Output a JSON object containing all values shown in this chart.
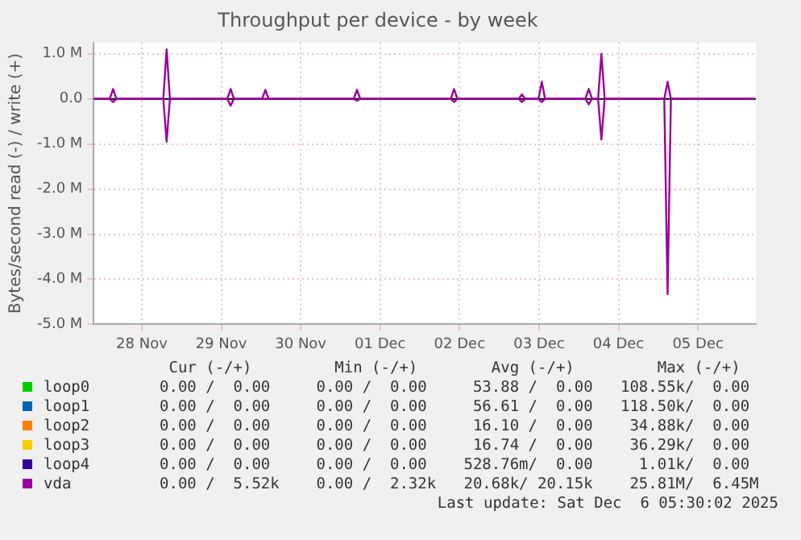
{
  "chart_data": {
    "type": "line",
    "title": "Throughput per device - by week",
    "ylabel": "Bytes/second read (-) / write (+)",
    "legend": "bottom",
    "grid": true,
    "marker": "none",
    "line_style": "solid",
    "xlim": [
      "2025-11-27T21:30",
      "2025-12-06T05:30"
    ],
    "xticks": [
      {
        "value": "2025-11-28T12:00",
        "label": "28 Nov"
      },
      {
        "value": "2025-11-29T12:00",
        "label": "29 Nov"
      },
      {
        "value": "2025-11-30T12:00",
        "label": "30 Nov"
      },
      {
        "value": "2025-12-01T12:00",
        "label": "01 Dec"
      },
      {
        "value": "2025-12-02T12:00",
        "label": "02 Dec"
      },
      {
        "value": "2025-12-03T12:00",
        "label": "03 Dec"
      },
      {
        "value": "2025-12-04T12:00",
        "label": "04 Dec"
      },
      {
        "value": "2025-12-05T12:00",
        "label": "05 Dec"
      }
    ],
    "ylim": [
      -5000000,
      1250000
    ],
    "yticks": [
      {
        "value": -5000000,
        "label": "-5.0 M"
      },
      {
        "value": -4000000,
        "label": "-4.0 M"
      },
      {
        "value": -3000000,
        "label": "-3.0 M"
      },
      {
        "value": -2000000,
        "label": "-2.0 M"
      },
      {
        "value": -1000000,
        "label": "-1.0 M"
      },
      {
        "value": 0,
        "label": "0.0"
      },
      {
        "value": 1000000,
        "label": "1.0 M"
      }
    ],
    "ref_lines": [
      {
        "axis": "y",
        "value": 0,
        "color": "#000000"
      }
    ],
    "x": [
      "2025-11-27T21:30",
      "2025-11-28T02:20",
      "2025-11-28T03:20",
      "2025-11-28T04:20",
      "2025-11-28T18:30",
      "2025-11-28T19:30",
      "2025-11-28T20:30",
      "2025-11-29T13:50",
      "2025-11-29T14:50",
      "2025-11-29T15:50",
      "2025-11-30T00:20",
      "2025-11-30T01:20",
      "2025-11-30T02:20",
      "2025-12-01T04:00",
      "2025-12-01T05:00",
      "2025-12-01T06:00",
      "2025-12-02T09:20",
      "2025-12-02T10:20",
      "2025-12-02T11:20",
      "2025-12-03T05:50",
      "2025-12-03T06:50",
      "2025-12-03T07:50",
      "2025-12-03T11:50",
      "2025-12-03T12:50",
      "2025-12-03T13:50",
      "2025-12-04T02:00",
      "2025-12-04T03:00",
      "2025-12-04T04:00",
      "2025-12-04T05:50",
      "2025-12-04T06:50",
      "2025-12-04T07:50",
      "2025-12-05T01:50",
      "2025-12-05T02:50",
      "2025-12-05T03:50",
      "2025-12-06T05:00"
    ],
    "series": [
      {
        "name": "loop0",
        "color": "#00cc00",
        "values": [
          null,
          null,
          null,
          null,
          null,
          null,
          null,
          null,
          null,
          null,
          null,
          null,
          null,
          null,
          null,
          null,
          null,
          null,
          null,
          null,
          null,
          null,
          null,
          null,
          null,
          null,
          null,
          null,
          null,
          null,
          null,
          null,
          null,
          null,
          null
        ]
      },
      {
        "name": "loop1",
        "color": "#0066b3",
        "values": [
          null,
          null,
          null,
          null,
          null,
          null,
          null,
          null,
          null,
          null,
          null,
          null,
          null,
          null,
          null,
          null,
          null,
          null,
          null,
          null,
          null,
          null,
          null,
          null,
          null,
          null,
          null,
          null,
          null,
          null,
          null,
          null,
          null,
          null,
          null
        ]
      },
      {
        "name": "loop2",
        "color": "#ff8000",
        "values": [
          null,
          null,
          null,
          null,
          null,
          null,
          null,
          null,
          null,
          null,
          null,
          null,
          null,
          null,
          null,
          null,
          null,
          null,
          null,
          null,
          null,
          null,
          null,
          null,
          null,
          null,
          null,
          null,
          null,
          null,
          null,
          null,
          null,
          null,
          null
        ]
      },
      {
        "name": "loop3",
        "color": "#ffcc00",
        "values": [
          null,
          null,
          null,
          null,
          null,
          null,
          null,
          null,
          null,
          null,
          null,
          null,
          null,
          null,
          null,
          null,
          null,
          null,
          null,
          null,
          null,
          null,
          null,
          null,
          null,
          null,
          null,
          null,
          null,
          null,
          null,
          null,
          null,
          null,
          null
        ]
      },
      {
        "name": "loop4",
        "color": "#330099",
        "values": [
          null,
          null,
          null,
          null,
          null,
          null,
          null,
          null,
          null,
          null,
          null,
          null,
          null,
          null,
          null,
          null,
          null,
          null,
          null,
          null,
          null,
          null,
          null,
          null,
          null,
          null,
          null,
          null,
          null,
          null,
          null,
          null,
          null,
          null,
          null
        ]
      },
      {
        "name": "vda",
        "color": "#990099",
        "values": [
          0,
          0,
          220000,
          0,
          0,
          1100000,
          0,
          0,
          220000,
          0,
          0,
          200000,
          0,
          0,
          200000,
          0,
          0,
          220000,
          0,
          0,
          100000,
          0,
          0,
          380000,
          0,
          0,
          220000,
          0,
          0,
          1000000,
          0,
          0,
          380000,
          0,
          0
        ]
      },
      {
        "color": "#990099",
        "values": [
          0,
          0,
          -70000,
          0,
          0,
          -950000,
          0,
          0,
          -150000,
          0,
          0,
          0,
          0,
          0,
          -40000,
          0,
          0,
          -70000,
          0,
          0,
          -70000,
          0,
          0,
          -70000,
          0,
          0,
          -120000,
          0,
          0,
          -900000,
          0,
          0,
          -4330000,
          0,
          0
        ]
      }
    ],
    "annotations": [
      " Cur (-/+)         Min (-/+)        Avg (-/+)         Max (-/+)",
      "0.00 /  0.00     0.00 /  0.00     53.88 /  0.00   108.55k/  0.00",
      "0.00 /  0.00     0.00 /  0.00     56.61 /  0.00   118.50k/  0.00",
      "0.00 /  0.00     0.00 /  0.00     16.10 /  0.00    34.88k/  0.00",
      "0.00 /  0.00     0.00 /  0.00     16.74 /  0.00    36.29k/  0.00",
      "0.00 /  0.00     0.00 /  0.00    528.76m/  0.00     1.01k/  0.00",
      "0.00 /  5.52k    0.00 /  2.32k   20.68k/ 20.15k    25.81M/  6.45M",
      "Last update: Sat Dec  6 05:30:02 2025"
    ]
  }
}
